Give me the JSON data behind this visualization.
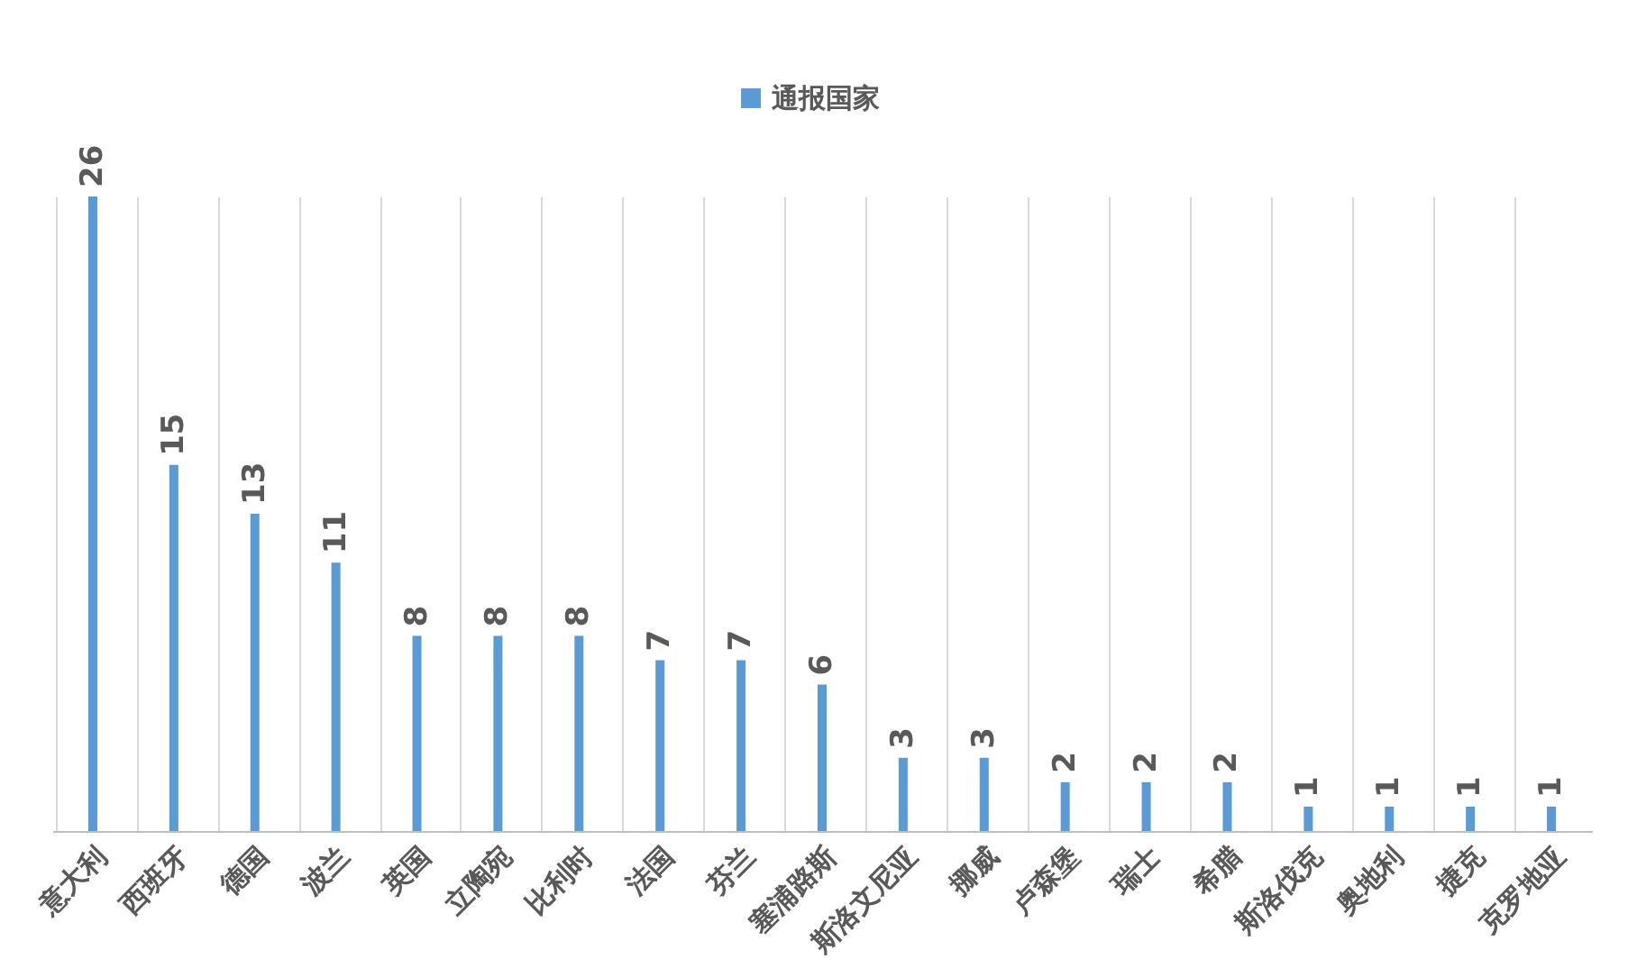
{
  "chart_data": {
    "type": "bar",
    "categories": [
      "意大利",
      "西班牙",
      "德国",
      "波兰",
      "英国",
      "立陶宛",
      "比利时",
      "法国",
      "芬兰",
      "塞浦路斯",
      "斯洛文尼亚",
      "挪威",
      "卢森堡",
      "瑞士",
      "希腊",
      "斯洛伐克",
      "奥地利",
      "捷克",
      "克罗地亚"
    ],
    "series": [
      {
        "name": "通报国家",
        "color": "#5b9bd5",
        "values": [
          26,
          15,
          13,
          11,
          8,
          8,
          8,
          7,
          7,
          6,
          3,
          3,
          2,
          2,
          2,
          1,
          1,
          1,
          1
        ]
      }
    ],
    "data_labels": true,
    "grid": "x",
    "legend": "top"
  }
}
